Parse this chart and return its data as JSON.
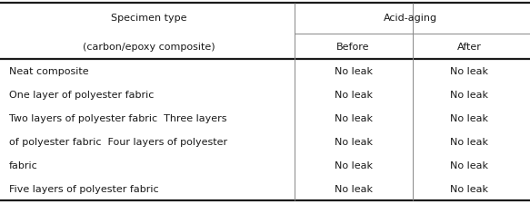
{
  "header_col1_line1": "Specimen type",
  "header_col1_line2": "(carbon/epoxy composite)",
  "header_col2_span": "Acid-aging",
  "header_col2a": "Before",
  "header_col2b": "After",
  "rows": [
    {
      "col1": "Neat composite",
      "col2a": "No leak",
      "col2b": "No leak"
    },
    {
      "col1": "One layer of polyester fabric",
      "col2a": "No leak",
      "col2b": "No leak"
    },
    {
      "col1": "Two layers of polyester fabric  Three layers",
      "col2a": "No leak",
      "col2b": "No leak"
    },
    {
      "col1": "of polyester fabric  Four layers of polyester",
      "col2a": "No leak",
      "col2b": "No leak"
    },
    {
      "col1": "fabric",
      "col2a": "No leak",
      "col2b": "No leak"
    },
    {
      "col1": "Five layers of polyester fabric",
      "col2a": "No leak",
      "col2b": "No leak"
    }
  ],
  "bg_color": "#ffffff",
  "text_color": "#1a1a1a",
  "font_size": 8.0,
  "c1_split": 0.555,
  "c2_split": 0.778,
  "thick_lw": 1.6,
  "thin_lw": 0.7,
  "gray_lw": 0.7,
  "gray_color": "#888888"
}
